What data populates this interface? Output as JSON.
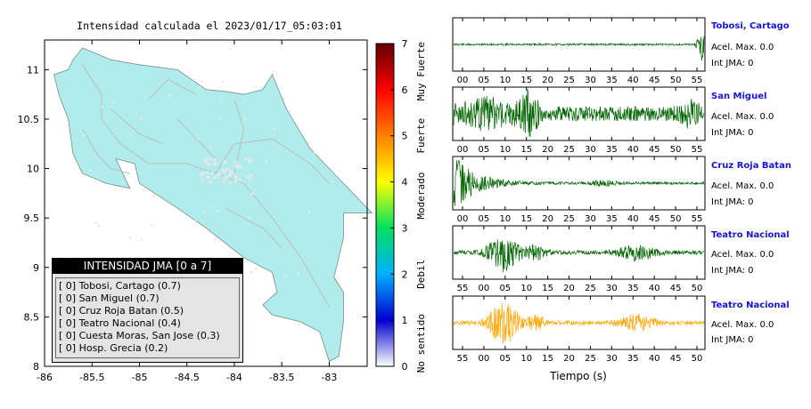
{
  "map": {
    "title": "Intensidad calculada el 2023/01/17_05:03:01",
    "x_ticks": [
      "-86",
      "-85.5",
      "-85",
      "-84.5",
      "-84",
      "-83.5",
      "-83"
    ],
    "y_ticks": [
      "11",
      "10.5",
      "10",
      "9.5",
      "9",
      "8.5",
      "8"
    ],
    "xlim": [
      -86,
      -82.6
    ],
    "ylim": [
      8,
      11.3
    ],
    "land_color": "#b0ecec",
    "road_color": "#bdbdbd",
    "station_color": "#e8e8e8"
  },
  "colorbar": {
    "ticks": [
      "0",
      "1",
      "2",
      "3",
      "4",
      "5",
      "6",
      "7"
    ],
    "labels": [
      "No sentido",
      "Debil",
      "Moderado",
      "Fuerte",
      "Muy Fuerte"
    ],
    "colors": [
      "#ffffff",
      "#0000d0",
      "#00b0ff",
      "#00e060",
      "#ffff00",
      "#ff8000",
      "#ff0000",
      "#600000"
    ]
  },
  "legend": {
    "header": "INTENSIDAD JMA [0 a 7]",
    "items": [
      "[ 0] Tobosi, Cartago (0.7)",
      "[ 0] San Miguel (0.7)",
      "[ 0] Cruz Roja Batan (0.5)",
      "[ 0] Teatro Nacional (0.4)",
      "[ 0] Cuesta Moras, San Jose (0.3)",
      "[ 0] Hosp. Grecia (0.2)"
    ]
  },
  "chart_data": {
    "type": "line",
    "xlabel": "Tiempo (s)",
    "traces": [
      {
        "name": "Tobosi, Cartago",
        "accel_label": "Acel. Max. 0.0",
        "int_label": "Int JMA: 0",
        "color": "#006400",
        "ticks": [
          "00",
          "05",
          "10",
          "15",
          "20",
          "25",
          "30",
          "35",
          "40",
          "45",
          "50",
          "55"
        ]
      },
      {
        "name": "San Miguel",
        "accel_label": "Acel. Max. 0.0",
        "int_label": "Int JMA: 0",
        "color": "#006400",
        "ticks": [
          "00",
          "05",
          "10",
          "15",
          "20",
          "25",
          "30",
          "35",
          "40",
          "45",
          "50",
          "55"
        ]
      },
      {
        "name": "Cruz Roja Batan",
        "accel_label": "Acel. Max. 0.0",
        "int_label": "Int JMA: 0",
        "color": "#006400",
        "ticks": [
          "00",
          "05",
          "10",
          "15",
          "20",
          "25",
          "30",
          "35",
          "40",
          "45",
          "50",
          "55"
        ]
      },
      {
        "name": "Teatro Nacional",
        "accel_label": "Acel. Max. 0.0",
        "int_label": "Int JMA: 0",
        "color": "#006400",
        "ticks": [
          "55",
          "00",
          "05",
          "10",
          "15",
          "20",
          "25",
          "30",
          "35",
          "40",
          "45",
          "50"
        ]
      },
      {
        "name": "Teatro Nacional",
        "accel_label": "Acel. Max. 0.0",
        "int_label": "Int JMA: 0",
        "color": "#ffa500",
        "ticks": [
          "55",
          "00",
          "05",
          "10",
          "15",
          "20",
          "25",
          "30",
          "35",
          "40",
          "45",
          "50"
        ]
      }
    ]
  }
}
